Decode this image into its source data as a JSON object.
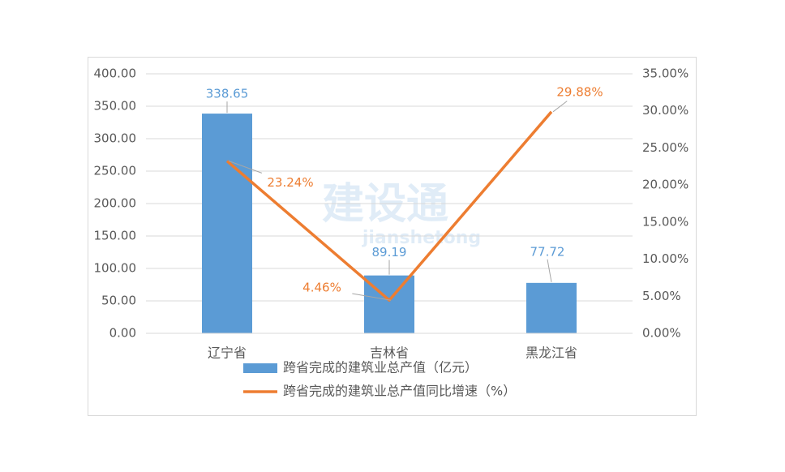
{
  "chart_data": {
    "type": "bar",
    "watermark": "建设通",
    "watermark_sub": "jianshetong",
    "categories": [
      "辽宁省",
      "吉林省",
      "黑龙江省"
    ],
    "series": [
      {
        "name": "跨省完成的建筑业总产值（亿元）",
        "type": "bar",
        "color": "#5b9bd5",
        "values": [
          338.65,
          89.19,
          77.72
        ]
      },
      {
        "name": "跨省完成的建筑业总产值同比增速（%）",
        "type": "line",
        "axis": "y2",
        "color": "#ed7d31",
        "values": [
          23.24,
          4.46,
          29.88
        ],
        "value_labels": [
          "23.24%",
          "4.46%",
          "29.88%"
        ]
      }
    ],
    "ylim": [
      0,
      400
    ],
    "yticks": [
      {
        "value": 0,
        "label": "0.00"
      },
      {
        "value": 50,
        "label": "50.00"
      },
      {
        "value": 100,
        "label": "100.00"
      },
      {
        "value": 150,
        "label": "150.00"
      },
      {
        "value": 200,
        "label": "200.00"
      },
      {
        "value": 250,
        "label": "250.00"
      },
      {
        "value": 300,
        "label": "300.00"
      },
      {
        "value": 350,
        "label": "350.00"
      },
      {
        "value": 400,
        "label": "400.00"
      }
    ],
    "y2lim": [
      0,
      35
    ],
    "y2ticks": [
      {
        "value": 0,
        "label": "0.00%"
      },
      {
        "value": 5,
        "label": "5.00%"
      },
      {
        "value": 10,
        "label": "10.00%"
      },
      {
        "value": 15,
        "label": "15.00%"
      },
      {
        "value": 20,
        "label": "20.00%"
      },
      {
        "value": 25,
        "label": "25.00%"
      },
      {
        "value": 30,
        "label": "30.00%"
      },
      {
        "value": 35,
        "label": "35.00%"
      }
    ],
    "grid": true,
    "legend": "bottom"
  }
}
